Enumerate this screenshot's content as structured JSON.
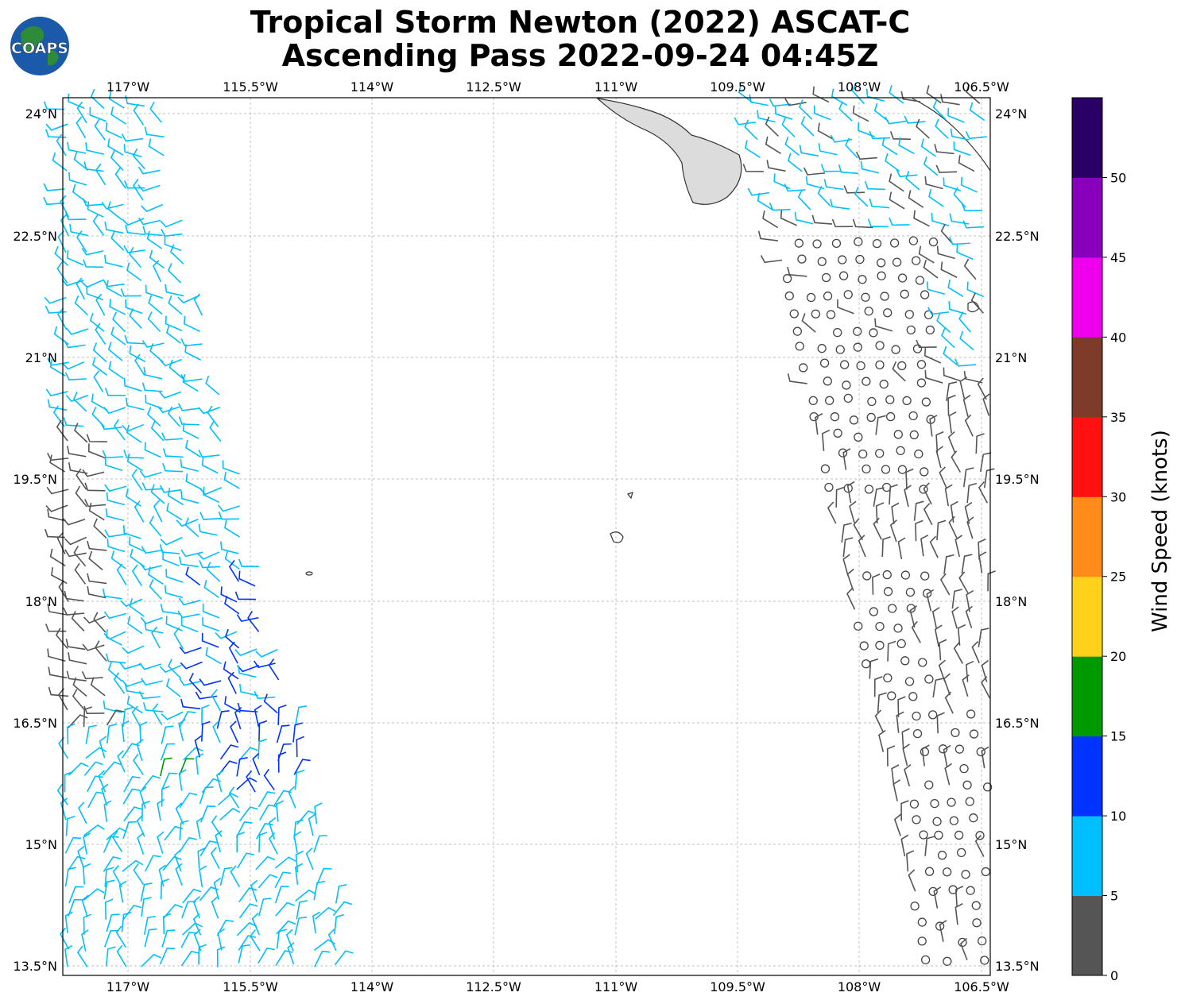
{
  "title": {
    "line1": "Tropical Storm Newton (2022) ASCAT-C",
    "line2": "Ascending Pass 2022-09-24 04:45Z"
  },
  "logo": {
    "text": "COAPS",
    "icon": "globe-icon"
  },
  "map": {
    "lon_labels": [
      "117°W",
      "115.5°W",
      "114°W",
      "112.5°W",
      "111°W",
      "109.5°W",
      "108°W",
      "106.5°W"
    ],
    "lat_labels": [
      "24°N",
      "22.5°N",
      "21°N",
      "19.5°N",
      "18°N",
      "16.5°N",
      "15°N",
      "13.5°N"
    ],
    "lon_range": [
      -117.8,
      -106.4
    ],
    "lat_range": [
      13.4,
      24.2
    ]
  },
  "colorbar": {
    "label": "Wind Speed (knots)",
    "ticks": [
      "0",
      "5",
      "10",
      "15",
      "20",
      "25",
      "30",
      "35",
      "40",
      "45",
      "50"
    ],
    "colors": [
      "#555555",
      "#00bfff",
      "#0033ff",
      "#009900",
      "#ffd11a",
      "#ff8c1a",
      "#ff1111",
      "#7f3b2a",
      "#ee00ee",
      "#8800bb",
      "#2a0066"
    ]
  }
}
